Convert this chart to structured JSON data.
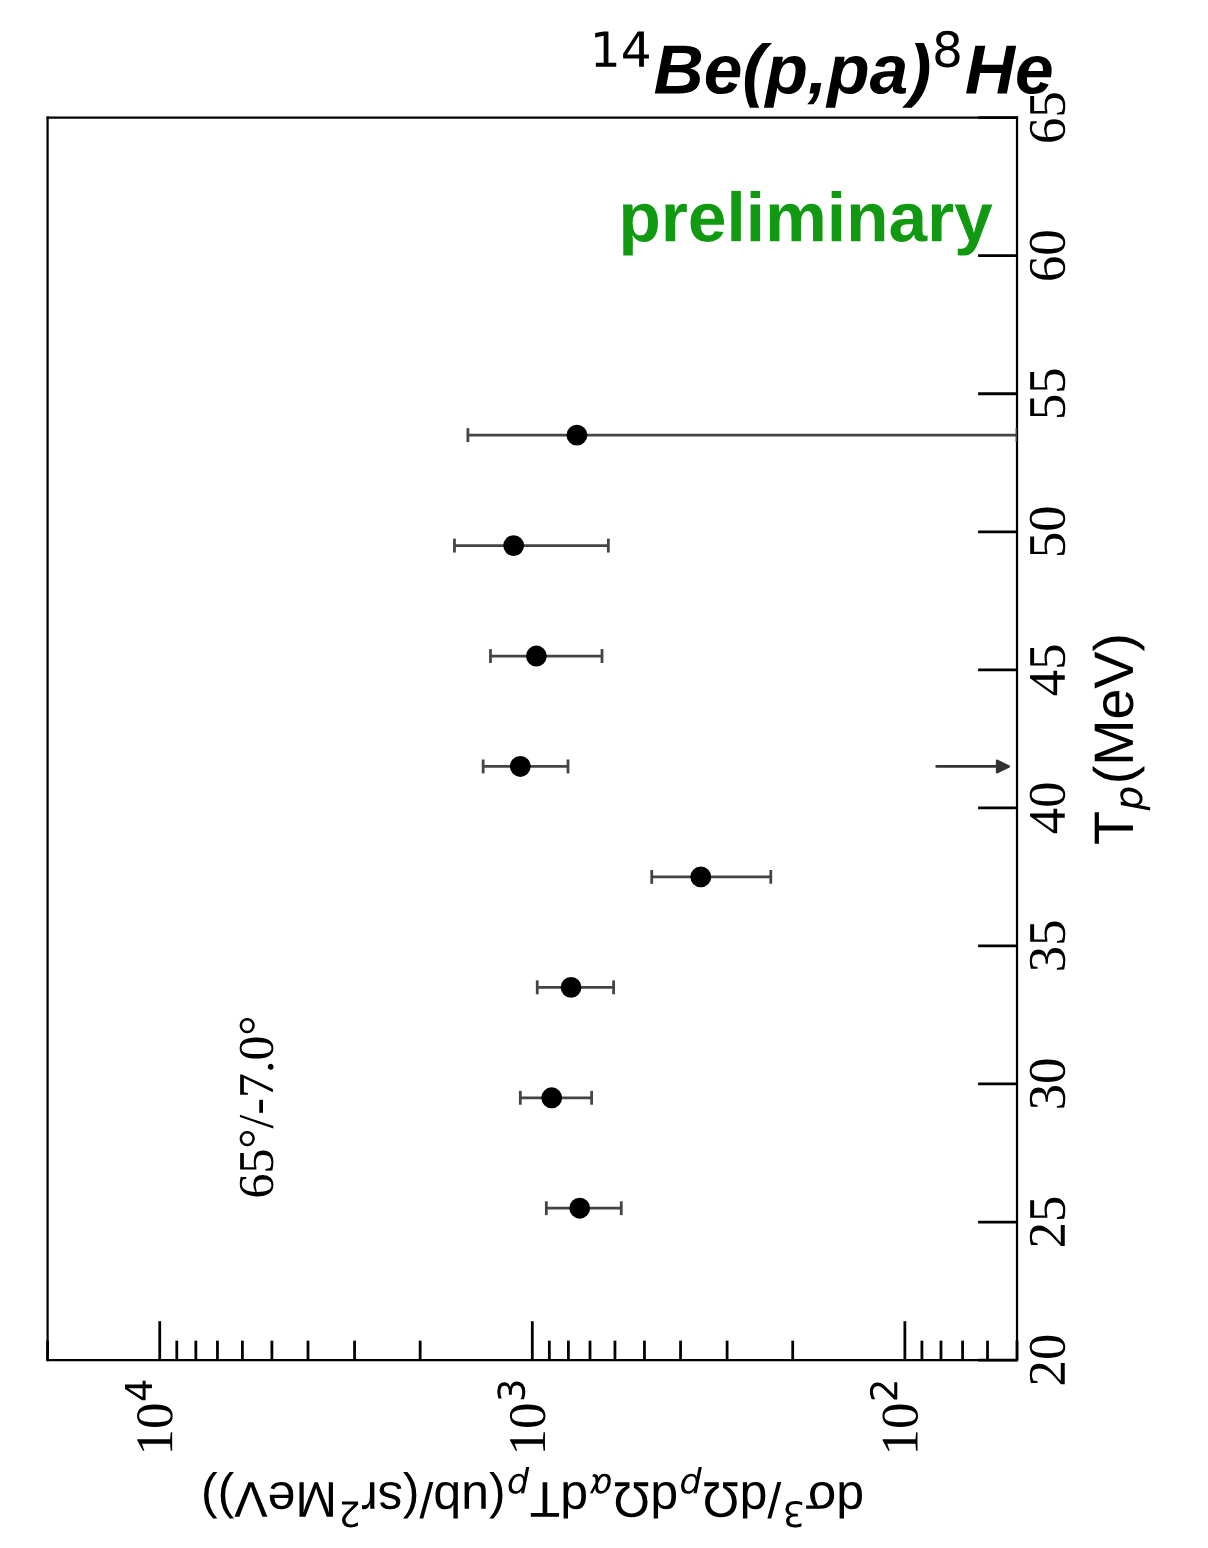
{
  "chart_data": {
    "type": "scatter",
    "title": "$^{14}$Be(p,pa)$^{8}$He",
    "xlabel": "dσ$^{3}$/dΩ$_{p}$dΩ$_{α}$dT$_{p}$(ub/(sr$^{2}$MeV))",
    "ylabel": "T$_{p}$(MeV)",
    "series": [
      {
        "color": "#000000",
        "x": [
          746,
          887,
          787,
          353,
          1077,
          975,
          1122,
          759
        ],
        "values": [
          25.5,
          29.5,
          33.5,
          37.5,
          41.5,
          45.5,
          49.5,
          53.5
        ],
        "xerrors": [
          [
            577,
            917
          ],
          [
            693,
            1077
          ],
          [
            605,
            970
          ],
          [
            229,
            478
          ],
          [
            802,
            1355
          ],
          [
            650,
            1295
          ],
          [
            625,
            1618
          ],
          [
            50,
            1489
          ]
        ]
      }
    ],
    "marker": "circle",
    "log": "x",
    "grid": false,
    "legend": false,
    "xlim": [
      20000,
      50
    ],
    "ylim": [
      20,
      65
    ],
    "xticks": [
      {
        "value": 10000,
        "label": "10$^{4}$"
      },
      {
        "value": 1000,
        "label": "10$^{3}$"
      },
      {
        "value": 100,
        "label": "10$^{2}$"
      }
    ],
    "yticks": [
      20,
      25,
      30,
      35,
      40,
      45,
      50,
      55,
      60,
      65
    ],
    "annotations": [
      "preliminary",
      "65°/-7.0°"
    ]
  }
}
